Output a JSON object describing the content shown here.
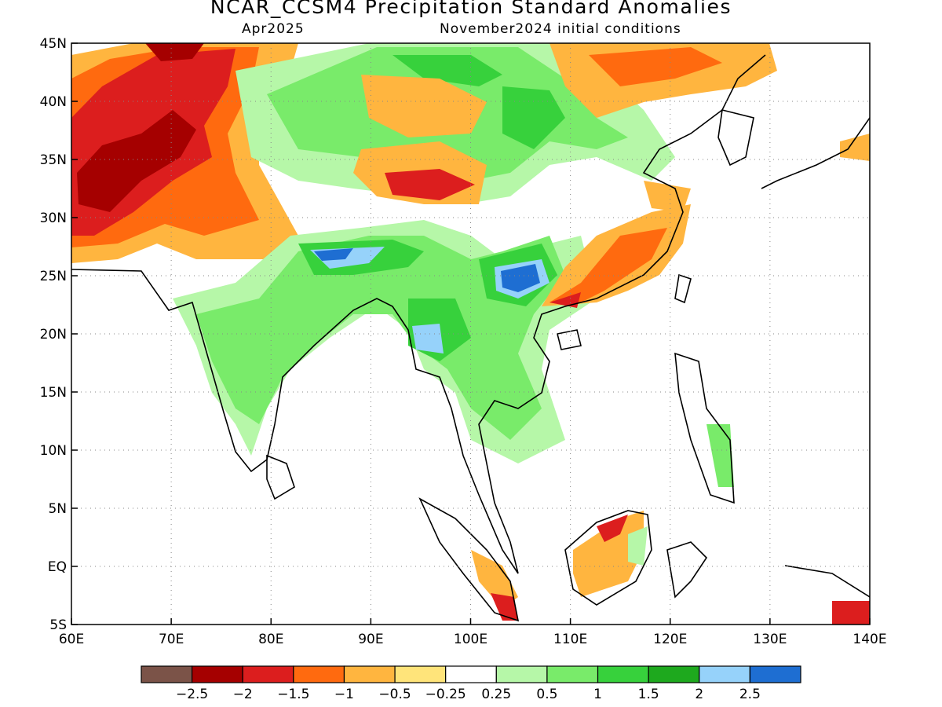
{
  "title": "NCAR_CCSM4 Precipitation Standard Anomalies",
  "subtitle_left": "Apr2025",
  "subtitle_right": "November2024 initial conditions",
  "map": {
    "lon_range": [
      60,
      140
    ],
    "lat_range": [
      -5,
      45
    ],
    "grid": "dotted",
    "lat_labels": [
      "45N",
      "40N",
      "35N",
      "30N",
      "25N",
      "20N",
      "15N",
      "10N",
      "5N",
      "EQ",
      "5S"
    ],
    "lon_labels": [
      "60E",
      "70E",
      "80E",
      "90E",
      "100E",
      "110E",
      "120E",
      "130E",
      "140E"
    ]
  },
  "colorbar": {
    "colors": [
      "#7b5348",
      "#a50000",
      "#dc1e1e",
      "#ff6a0f",
      "#ffb53f",
      "#ffe47a",
      "#ffffff",
      "#b6f7a8",
      "#79eb6a",
      "#37d13c",
      "#1ea91e",
      "#96d2fa",
      "#1e6ed2"
    ],
    "labels": [
      "−2.5",
      "−2",
      "−1.5",
      "−1",
      "−0.5",
      "−0.25",
      "0.25",
      "0.5",
      "1",
      "1.5",
      "2",
      "2.5"
    ]
  }
}
